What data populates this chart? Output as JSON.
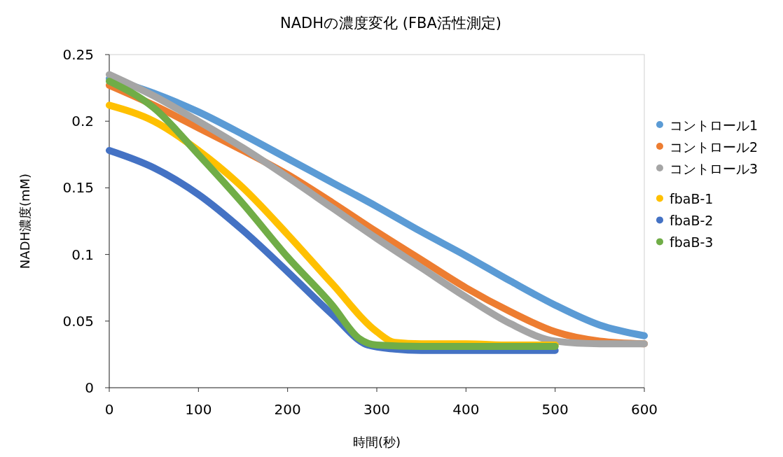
{
  "chart_data": {
    "type": "line",
    "title": "NADHの濃度変化 (FBA活性測定)",
    "xlabel": "時間(秒)",
    "ylabel": "NADH濃度(mM)",
    "xlim": [
      0,
      600
    ],
    "xticks": [
      0,
      100,
      200,
      300,
      400,
      500,
      600
    ],
    "ylim": [
      0,
      0.25
    ],
    "yticks": [
      0,
      0.05,
      0.1,
      0.15,
      0.2,
      0.25
    ],
    "grid": false,
    "legend": "right",
    "marker": "none",
    "line_style": "solid",
    "series": [
      {
        "name": "コントロール1",
        "color": "#5b9bd5",
        "x": [
          0,
          50,
          100,
          150,
          200,
          250,
          300,
          350,
          400,
          450,
          500,
          550,
          600
        ],
        "values": [
          0.232,
          0.221,
          0.207,
          0.19,
          0.172,
          0.154,
          0.136,
          0.117,
          0.099,
          0.08,
          0.062,
          0.047,
          0.039
        ]
      },
      {
        "name": "コントロール2",
        "color": "#ed7d31",
        "x": [
          0,
          50,
          100,
          150,
          200,
          250,
          300,
          350,
          400,
          450,
          500,
          550,
          600
        ],
        "values": [
          0.227,
          0.212,
          0.195,
          0.178,
          0.16,
          0.139,
          0.117,
          0.096,
          0.075,
          0.057,
          0.042,
          0.035,
          0.033
        ]
      },
      {
        "name": "コントロール3",
        "color": "#a5a5a5",
        "x": [
          0,
          50,
          100,
          150,
          200,
          250,
          300,
          350,
          400,
          450,
          500,
          550,
          600
        ],
        "values": [
          0.235,
          0.219,
          0.2,
          0.18,
          0.158,
          0.135,
          0.112,
          0.09,
          0.068,
          0.048,
          0.035,
          0.033,
          0.033
        ]
      },
      {
        "name": "fbaB-1",
        "color": "#ffc000",
        "x": [
          0,
          50,
          100,
          150,
          200,
          250,
          300,
          320,
          350,
          400,
          450,
          500
        ],
        "values": [
          0.212,
          0.2,
          0.178,
          0.15,
          0.115,
          0.078,
          0.042,
          0.034,
          0.033,
          0.033,
          0.032,
          0.032
        ]
      },
      {
        "name": "fbaB-2",
        "color": "#4472c4",
        "x": [
          0,
          50,
          100,
          150,
          200,
          250,
          290,
          320,
          350,
          400,
          450,
          500
        ],
        "values": [
          0.178,
          0.165,
          0.145,
          0.118,
          0.087,
          0.055,
          0.032,
          0.029,
          0.028,
          0.028,
          0.028,
          0.028
        ]
      },
      {
        "name": "fbaB-3",
        "color": "#70ad47",
        "x": [
          0,
          50,
          100,
          150,
          200,
          250,
          280,
          300,
          350,
          400,
          450,
          500
        ],
        "values": [
          0.23,
          0.21,
          0.175,
          0.138,
          0.098,
          0.062,
          0.037,
          0.032,
          0.031,
          0.031,
          0.031,
          0.031
        ]
      }
    ]
  }
}
